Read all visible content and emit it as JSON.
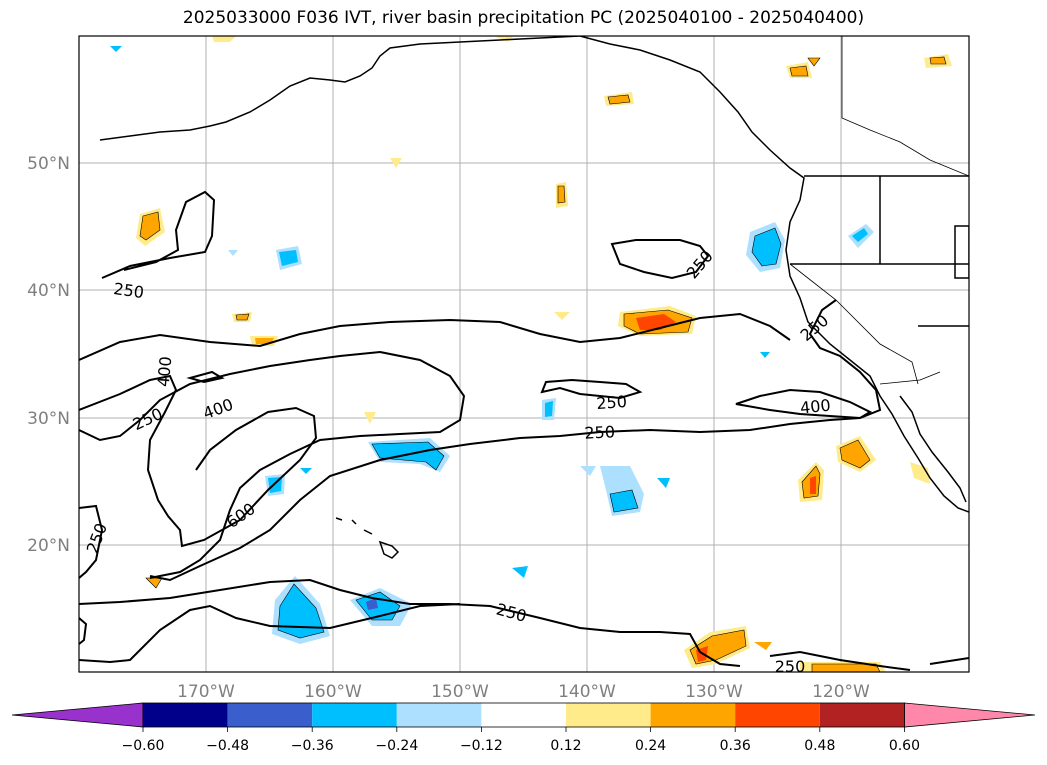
{
  "title": "2025033000 F036 IVT, river basin precipitation PC (2025040100 - 2025040400)",
  "map": {
    "lat_labels": [
      "50°N",
      "40°N",
      "30°N",
      "20°N"
    ],
    "lon_labels": [
      "170°W",
      "160°W",
      "150°W",
      "140°W",
      "130°W",
      "120°W"
    ],
    "grid": true
  },
  "contour_labels": [
    "250",
    "250",
    "250",
    "400",
    "400",
    "250",
    "600",
    "250",
    "250",
    "250",
    "250",
    "400",
    "250",
    "250"
  ],
  "colorbar": {
    "ticks": [
      "−0.60",
      "−0.48",
      "−0.36",
      "−0.24",
      "−0.12",
      "0.12",
      "0.24",
      "0.36",
      "0.48",
      "0.60"
    ],
    "colors": [
      "#9932CC",
      "#00008B",
      "#3A5FCD",
      "#00BFFF",
      "#ADDFFF",
      "#FFFFFF",
      "#FFEB8A",
      "#FFA500",
      "#FF4500",
      "#B22222",
      "#FF88AA"
    ]
  }
}
